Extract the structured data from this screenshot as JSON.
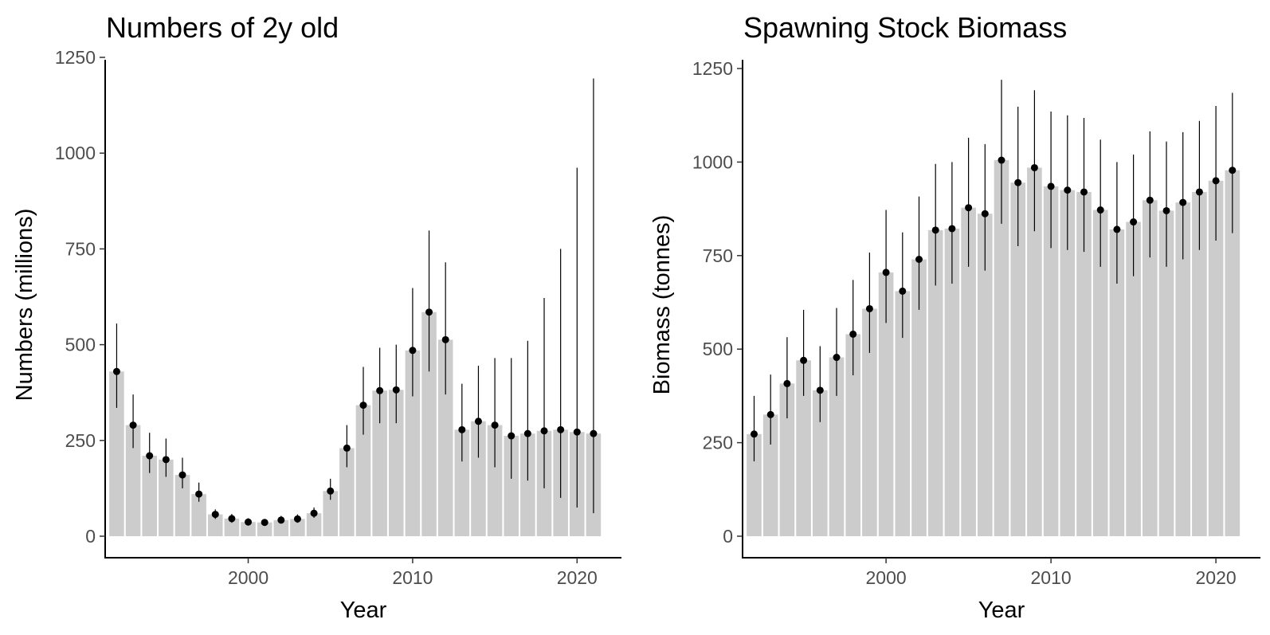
{
  "chart_data": [
    {
      "type": "bar",
      "title": "Numbers of 2y old",
      "xlabel": "Year",
      "ylabel": "Numbers (millions)",
      "ylim": [
        0,
        1250
      ],
      "yticks": [
        0,
        250,
        500,
        750,
        1000,
        1250
      ],
      "xticks": [
        2000,
        2010,
        2020
      ],
      "xlim": [
        1991.3,
        2022.7
      ],
      "grid": false,
      "x": [
        1992,
        1993,
        1994,
        1995,
        1996,
        1997,
        1998,
        1999,
        2000,
        2001,
        2002,
        2003,
        2004,
        2005,
        2006,
        2007,
        2008,
        2009,
        2010,
        2011,
        2012,
        2013,
        2014,
        2015,
        2016,
        2017,
        2018,
        2019,
        2020,
        2021
      ],
      "values": [
        430,
        290,
        210,
        200,
        160,
        110,
        57,
        46,
        37,
        36,
        42,
        45,
        60,
        118,
        230,
        342,
        380,
        382,
        485,
        585,
        513,
        278,
        300,
        290,
        262,
        268,
        275,
        278,
        272,
        268
      ],
      "lower": [
        335,
        230,
        165,
        155,
        125,
        90,
        45,
        35,
        28,
        27,
        33,
        35,
        48,
        95,
        180,
        265,
        295,
        295,
        365,
        430,
        370,
        195,
        205,
        180,
        150,
        145,
        125,
        100,
        75,
        60
      ],
      "upper": [
        555,
        370,
        270,
        255,
        205,
        140,
        70,
        58,
        47,
        45,
        53,
        57,
        75,
        150,
        290,
        442,
        492,
        500,
        648,
        798,
        715,
        398,
        445,
        465,
        465,
        510,
        622,
        750,
        962,
        1195
      ]
    },
    {
      "type": "bar",
      "title": "Spawning Stock Biomass",
      "xlabel": "Year",
      "ylabel": "Biomass (tonnes)",
      "ylim": [
        0,
        1250
      ],
      "yticks": [
        0,
        250,
        500,
        750,
        1000,
        1250
      ],
      "xticks": [
        2000,
        2010,
        2020
      ],
      "xlim": [
        1991.3,
        2022.7
      ],
      "grid": false,
      "x": [
        1992,
        1993,
        1994,
        1995,
        1996,
        1997,
        1998,
        1999,
        2000,
        2001,
        2002,
        2003,
        2004,
        2005,
        2006,
        2007,
        2008,
        2009,
        2010,
        2011,
        2012,
        2013,
        2014,
        2015,
        2016,
        2017,
        2018,
        2019,
        2020,
        2021
      ],
      "values": [
        273,
        325,
        408,
        470,
        390,
        478,
        540,
        608,
        705,
        655,
        740,
        818,
        822,
        878,
        862,
        1005,
        945,
        985,
        935,
        925,
        920,
        872,
        820,
        840,
        898,
        870,
        892,
        920,
        950,
        978
      ],
      "lower": [
        200,
        245,
        315,
        375,
        305,
        375,
        430,
        490,
        570,
        530,
        605,
        670,
        675,
        720,
        710,
        835,
        775,
        815,
        770,
        765,
        760,
        720,
        675,
        695,
        745,
        720,
        740,
        765,
        790,
        810
      ],
      "upper": [
        375,
        432,
        532,
        605,
        508,
        610,
        685,
        758,
        872,
        812,
        908,
        995,
        1000,
        1065,
        1048,
        1220,
        1148,
        1192,
        1135,
        1125,
        1118,
        1060,
        1000,
        1020,
        1082,
        1055,
        1080,
        1110,
        1150,
        1185
      ]
    }
  ]
}
